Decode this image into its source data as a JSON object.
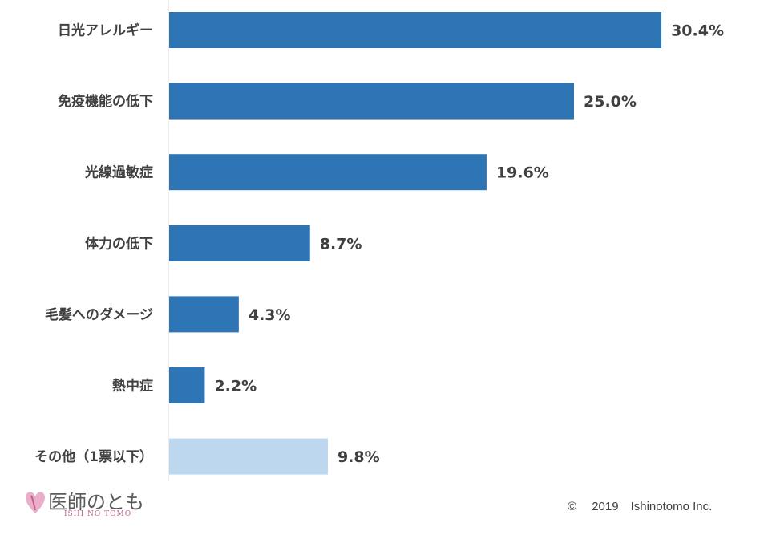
{
  "chart_data": {
    "type": "bar",
    "orientation": "horizontal",
    "categories": [
      "日光アレルギー",
      "免疫機能の低下",
      "光線過敏症",
      "体力の低下",
      "毛髪へのダメージ",
      "熱中症",
      "その他（1票以下）"
    ],
    "values": [
      30.4,
      25.0,
      19.6,
      8.7,
      4.3,
      2.2,
      9.8
    ],
    "value_labels": [
      "30.4%",
      "25.0%",
      "19.6%",
      "8.7%",
      "4.3%",
      "2.2%",
      "9.8%"
    ],
    "colors": [
      "#2e75b6",
      "#2e75b6",
      "#2e75b6",
      "#2e75b6",
      "#2e75b6",
      "#2e75b6",
      "#bdd7ee"
    ],
    "xlim": [
      0,
      33.6
    ],
    "grid": false,
    "legend": "none"
  },
  "footer": {
    "logo_text": "医師のとも",
    "logo_sub": "ISHI NO TOMO",
    "logo_icon": "heart-logo-icon",
    "copyright": "©　 2019　Ishinotomo Inc."
  }
}
